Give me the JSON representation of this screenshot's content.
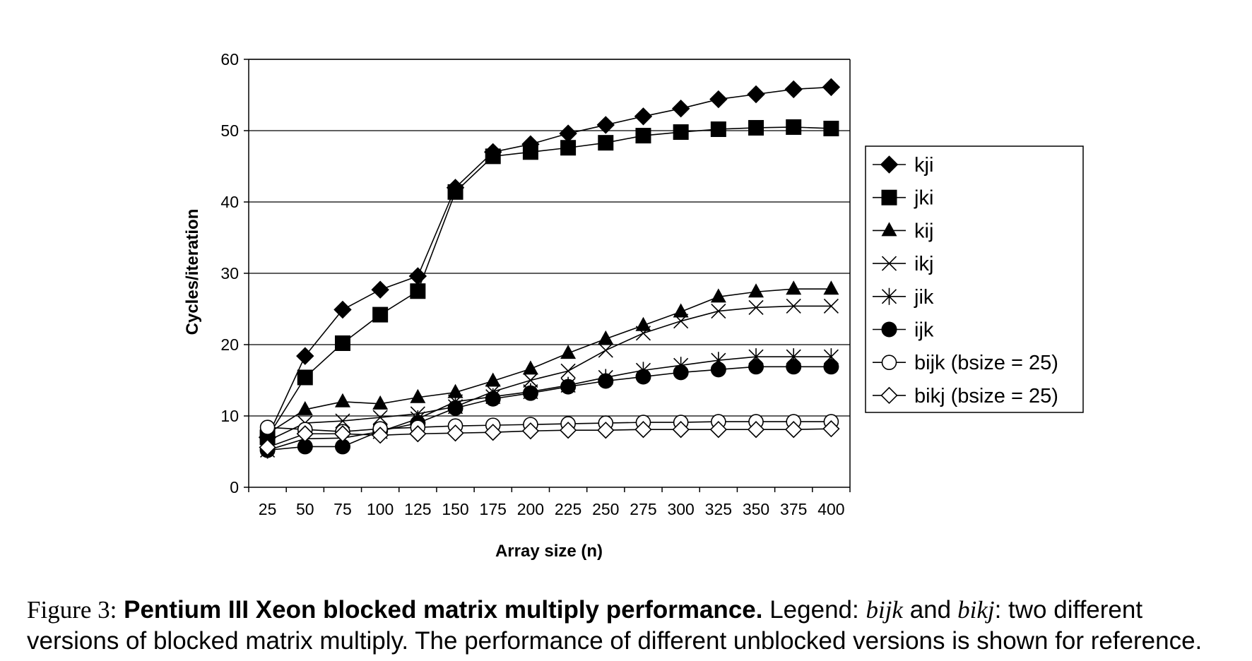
{
  "chart_data": {
    "type": "line",
    "xlabel": "Array size (n)",
    "ylabel": "Cycles/iteration",
    "x": [
      25,
      50,
      75,
      100,
      125,
      150,
      175,
      200,
      225,
      250,
      275,
      300,
      325,
      350,
      375,
      400
    ],
    "ylim": [
      0,
      60
    ],
    "yticks": [
      0,
      10,
      20,
      30,
      40,
      50,
      60
    ],
    "grid": true,
    "legend_position": "right",
    "series": [
      {
        "name": "kji",
        "marker": "diamond-filled",
        "values": [
          7.0,
          18.4,
          24.9,
          27.7,
          29.6,
          42.0,
          47.0,
          48.1,
          49.6,
          50.8,
          52.0,
          53.1,
          54.4,
          55.1,
          55.8,
          56.1
        ]
      },
      {
        "name": "jki",
        "marker": "square-filled",
        "values": [
          7.0,
          15.4,
          20.2,
          24.2,
          27.5,
          41.4,
          46.4,
          47.0,
          47.6,
          48.3,
          49.3,
          49.8,
          50.2,
          50.4,
          50.5,
          50.3
        ]
      },
      {
        "name": "kij",
        "marker": "triangle-filled",
        "values": [
          7.5,
          10.9,
          12.0,
          11.7,
          12.6,
          13.3,
          14.9,
          16.6,
          18.8,
          20.8,
          22.7,
          24.6,
          26.7,
          27.4,
          27.8,
          27.8
        ]
      },
      {
        "name": "ikj",
        "marker": "x",
        "values": [
          6.5,
          9.0,
          9.3,
          9.8,
          10.3,
          11.3,
          13.4,
          15.0,
          16.3,
          19.2,
          21.6,
          23.3,
          24.7,
          25.2,
          25.4,
          25.4
        ]
      },
      {
        "name": "jik",
        "marker": "asterisk",
        "values": [
          5.2,
          6.8,
          6.9,
          7.8,
          9.6,
          12.0,
          12.7,
          13.4,
          14.3,
          15.4,
          16.4,
          17.1,
          17.8,
          18.3,
          18.3,
          18.3
        ]
      },
      {
        "name": "ijk",
        "marker": "circle-filled",
        "values": [
          5.2,
          5.7,
          5.7,
          7.9,
          9.0,
          11.1,
          12.4,
          13.2,
          14.1,
          14.9,
          15.5,
          16.1,
          16.5,
          16.9,
          16.9,
          16.9
        ]
      },
      {
        "name": "bijk (bsize = 25)",
        "marker": "circle-open",
        "values": [
          8.4,
          8.1,
          7.8,
          8.2,
          8.4,
          8.6,
          8.7,
          8.8,
          8.9,
          9.0,
          9.1,
          9.1,
          9.2,
          9.2,
          9.2,
          9.2
        ]
      },
      {
        "name": "bikj (bsize = 25)",
        "marker": "diamond-open",
        "values": [
          5.6,
          7.5,
          7.5,
          7.3,
          7.5,
          7.6,
          7.7,
          7.9,
          8.0,
          8.0,
          8.1,
          8.1,
          8.1,
          8.1,
          8.1,
          8.2
        ]
      }
    ]
  },
  "caption": {
    "label": "Figure 3:",
    "bold_title": "Pentium III Xeon blocked matrix multiply performance.",
    "text_1": "Legend:",
    "term_1": "bijk",
    "text_2": "and",
    "term_2": "bikj",
    "text_3": ": two different",
    "line_2": "versions of blocked matrix multiply.  The performance of different unblocked versions is shown for reference."
  }
}
